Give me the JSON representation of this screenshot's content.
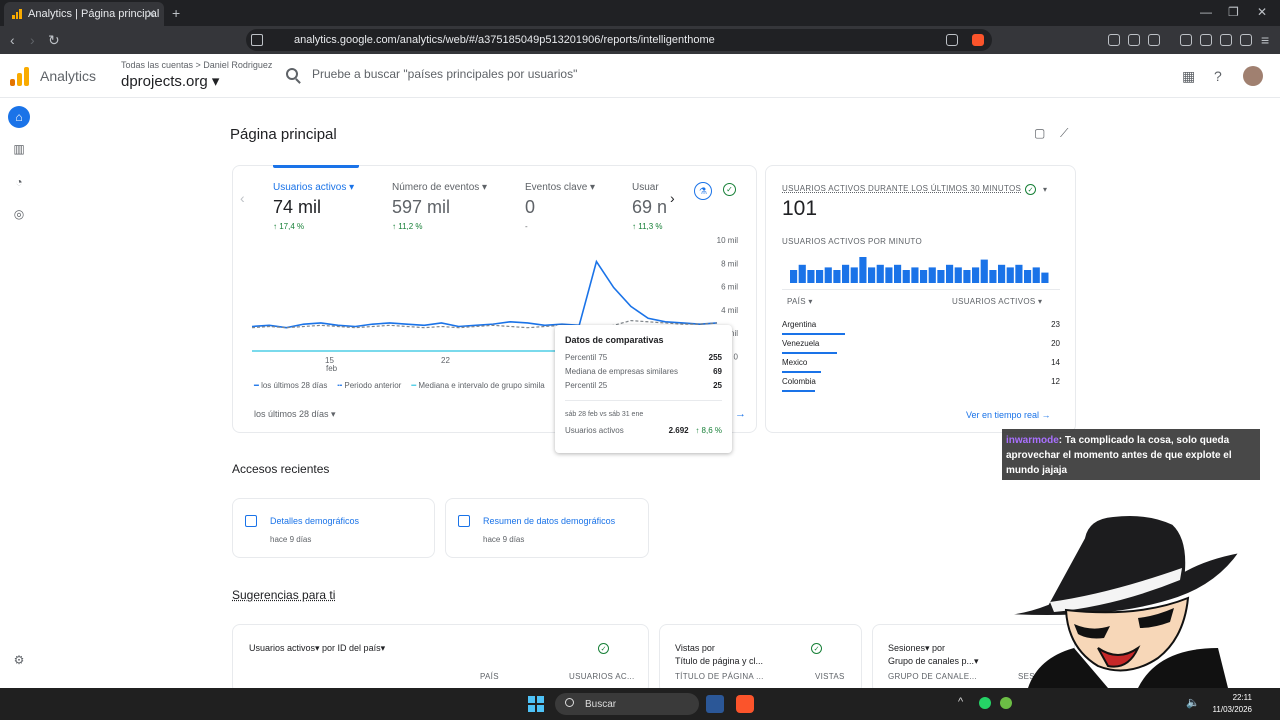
{
  "browser": {
    "tab_title": "Analytics | Página principal",
    "url": "analytics.google.com/analytics/web/#/a375185049p513201906/reports/intelligenthome"
  },
  "header": {
    "app_name": "Analytics",
    "breadcrumb": "Todas las cuentas > Daniel Rodriguez",
    "property": "dprojects.org",
    "search_placeholder": "Pruebe a buscar \"países principales por usuarios\""
  },
  "page": {
    "title": "Página principal"
  },
  "overview": {
    "metrics": [
      {
        "label": "Usuarios activos",
        "value": "74 mil",
        "change": "↑ 17,4 %"
      },
      {
        "label": "Número de eventos",
        "value": "597 mil",
        "change": "↑ 11,2 %"
      },
      {
        "label": "Eventos clave",
        "value": "0",
        "change": "-"
      },
      {
        "label": "Usuar",
        "value": "69 n",
        "change": "↑ 11,3 %"
      }
    ],
    "y_ticks": [
      "10 mil",
      "8 mil",
      "6 mil",
      "4 mil",
      "mil",
      "0"
    ],
    "x_ticks": [
      "15",
      "feb",
      "22"
    ],
    "legend": [
      "los últimos 28 días",
      "Periodo anterior",
      "Mediana e intervalo de grupo simila"
    ],
    "date_range": "los últimos 28 días"
  },
  "tooltip": {
    "title": "Datos de comparativas",
    "rows": [
      {
        "label": "Percentil 75",
        "value": "255"
      },
      {
        "label": "Mediana de empresas similares",
        "value": "69"
      },
      {
        "label": "Percentil 25",
        "value": "25"
      }
    ],
    "period": "sáb 28 feb vs sáb 31 ene",
    "metric_label": "Usuarios activos",
    "metric_value": "2.692",
    "metric_change": "↑ 8,6 %"
  },
  "realtime": {
    "title": "USUARIOS ACTIVOS DURANTE LOS ÚLTIMOS 30 MINUTOS",
    "value": "101",
    "per_minute": "USUARIOS ACTIVOS POR MINUTO",
    "col_country": "PAÍS",
    "col_users": "USUARIOS ACTIVOS",
    "rows": [
      {
        "country": "Argentina",
        "users": "23",
        "share": 0.23
      },
      {
        "country": "Venezuela",
        "users": "20",
        "share": 0.2
      },
      {
        "country": "Mexico",
        "users": "14",
        "share": 0.14
      },
      {
        "country": "Colombia",
        "users": "12",
        "share": 0.12
      }
    ],
    "link": "Ver en tiempo real →"
  },
  "recent": {
    "title": "Accesos recientes",
    "items": [
      {
        "label": "Detalles demográficos",
        "time": "hace 9 días"
      },
      {
        "label": "Resumen de datos demográficos",
        "time": "hace 9 días"
      }
    ]
  },
  "suggestions": {
    "title": "Sugerencias para ti",
    "card1": {
      "metric": "Usuarios activos▾ por ID del país▾",
      "col1": "PAÍS",
      "col2": "USUARIOS AC..."
    },
    "card2": {
      "metric": "Vistas por",
      "metric2": "Título de página y cl...",
      "col1": "TÍTULO DE PÁGINA ...",
      "col2": "VISTAS"
    },
    "card3": {
      "metric": "Sesiones▾ por",
      "metric2": "Grupo de canales p...▾",
      "col1": "GRUPO DE CANALE...",
      "col2": "SESIONES"
    }
  },
  "chat": {
    "user": "inwarmode",
    "message": ": Ta complicado la cosa, solo queda aprovechar el momento antes de que explote el mundo jajaja"
  },
  "taskbar": {
    "search": "Buscar",
    "time": "22:11",
    "date": "11/03/2026"
  },
  "chart_data": {
    "type": "line",
    "title": "",
    "ylabel": "",
    "xlabel": "",
    "ylim": [
      0,
      10000
    ],
    "x": [
      1,
      2,
      3,
      4,
      5,
      6,
      7,
      8,
      9,
      10,
      11,
      12,
      13,
      14,
      15,
      16,
      17,
      18,
      19,
      20,
      21,
      22,
      23,
      24,
      25,
      26,
      27,
      28
    ],
    "series": [
      {
        "name": "los últimos 28 días",
        "values": [
          2500,
          2600,
          2400,
          2700,
          2800,
          2600,
          2500,
          2700,
          2800,
          2700,
          2600,
          2800,
          2500,
          2600,
          2700,
          2900,
          2800,
          2600,
          2700,
          2600,
          8000,
          5800,
          4200,
          3200,
          2900,
          2800,
          2700,
          2800
        ]
      },
      {
        "name": "Periodo anterior",
        "values": [
          2400,
          2500,
          2400,
          2500,
          2600,
          2500,
          2400,
          2500,
          2600,
          2500,
          2400,
          2500,
          2400,
          2500,
          2600,
          2500,
          2400,
          2500,
          2600,
          2500,
          2400,
          2600,
          3000,
          2900,
          2800,
          2700,
          2700,
          2800
        ]
      }
    ],
    "realtime_per_minute": [
      5,
      7,
      5,
      5,
      6,
      5,
      7,
      6,
      10,
      6,
      7,
      6,
      7,
      5,
      6,
      5,
      6,
      5,
      7,
      6,
      5,
      6,
      9,
      5,
      7,
      6,
      7,
      5,
      6,
      4
    ]
  }
}
